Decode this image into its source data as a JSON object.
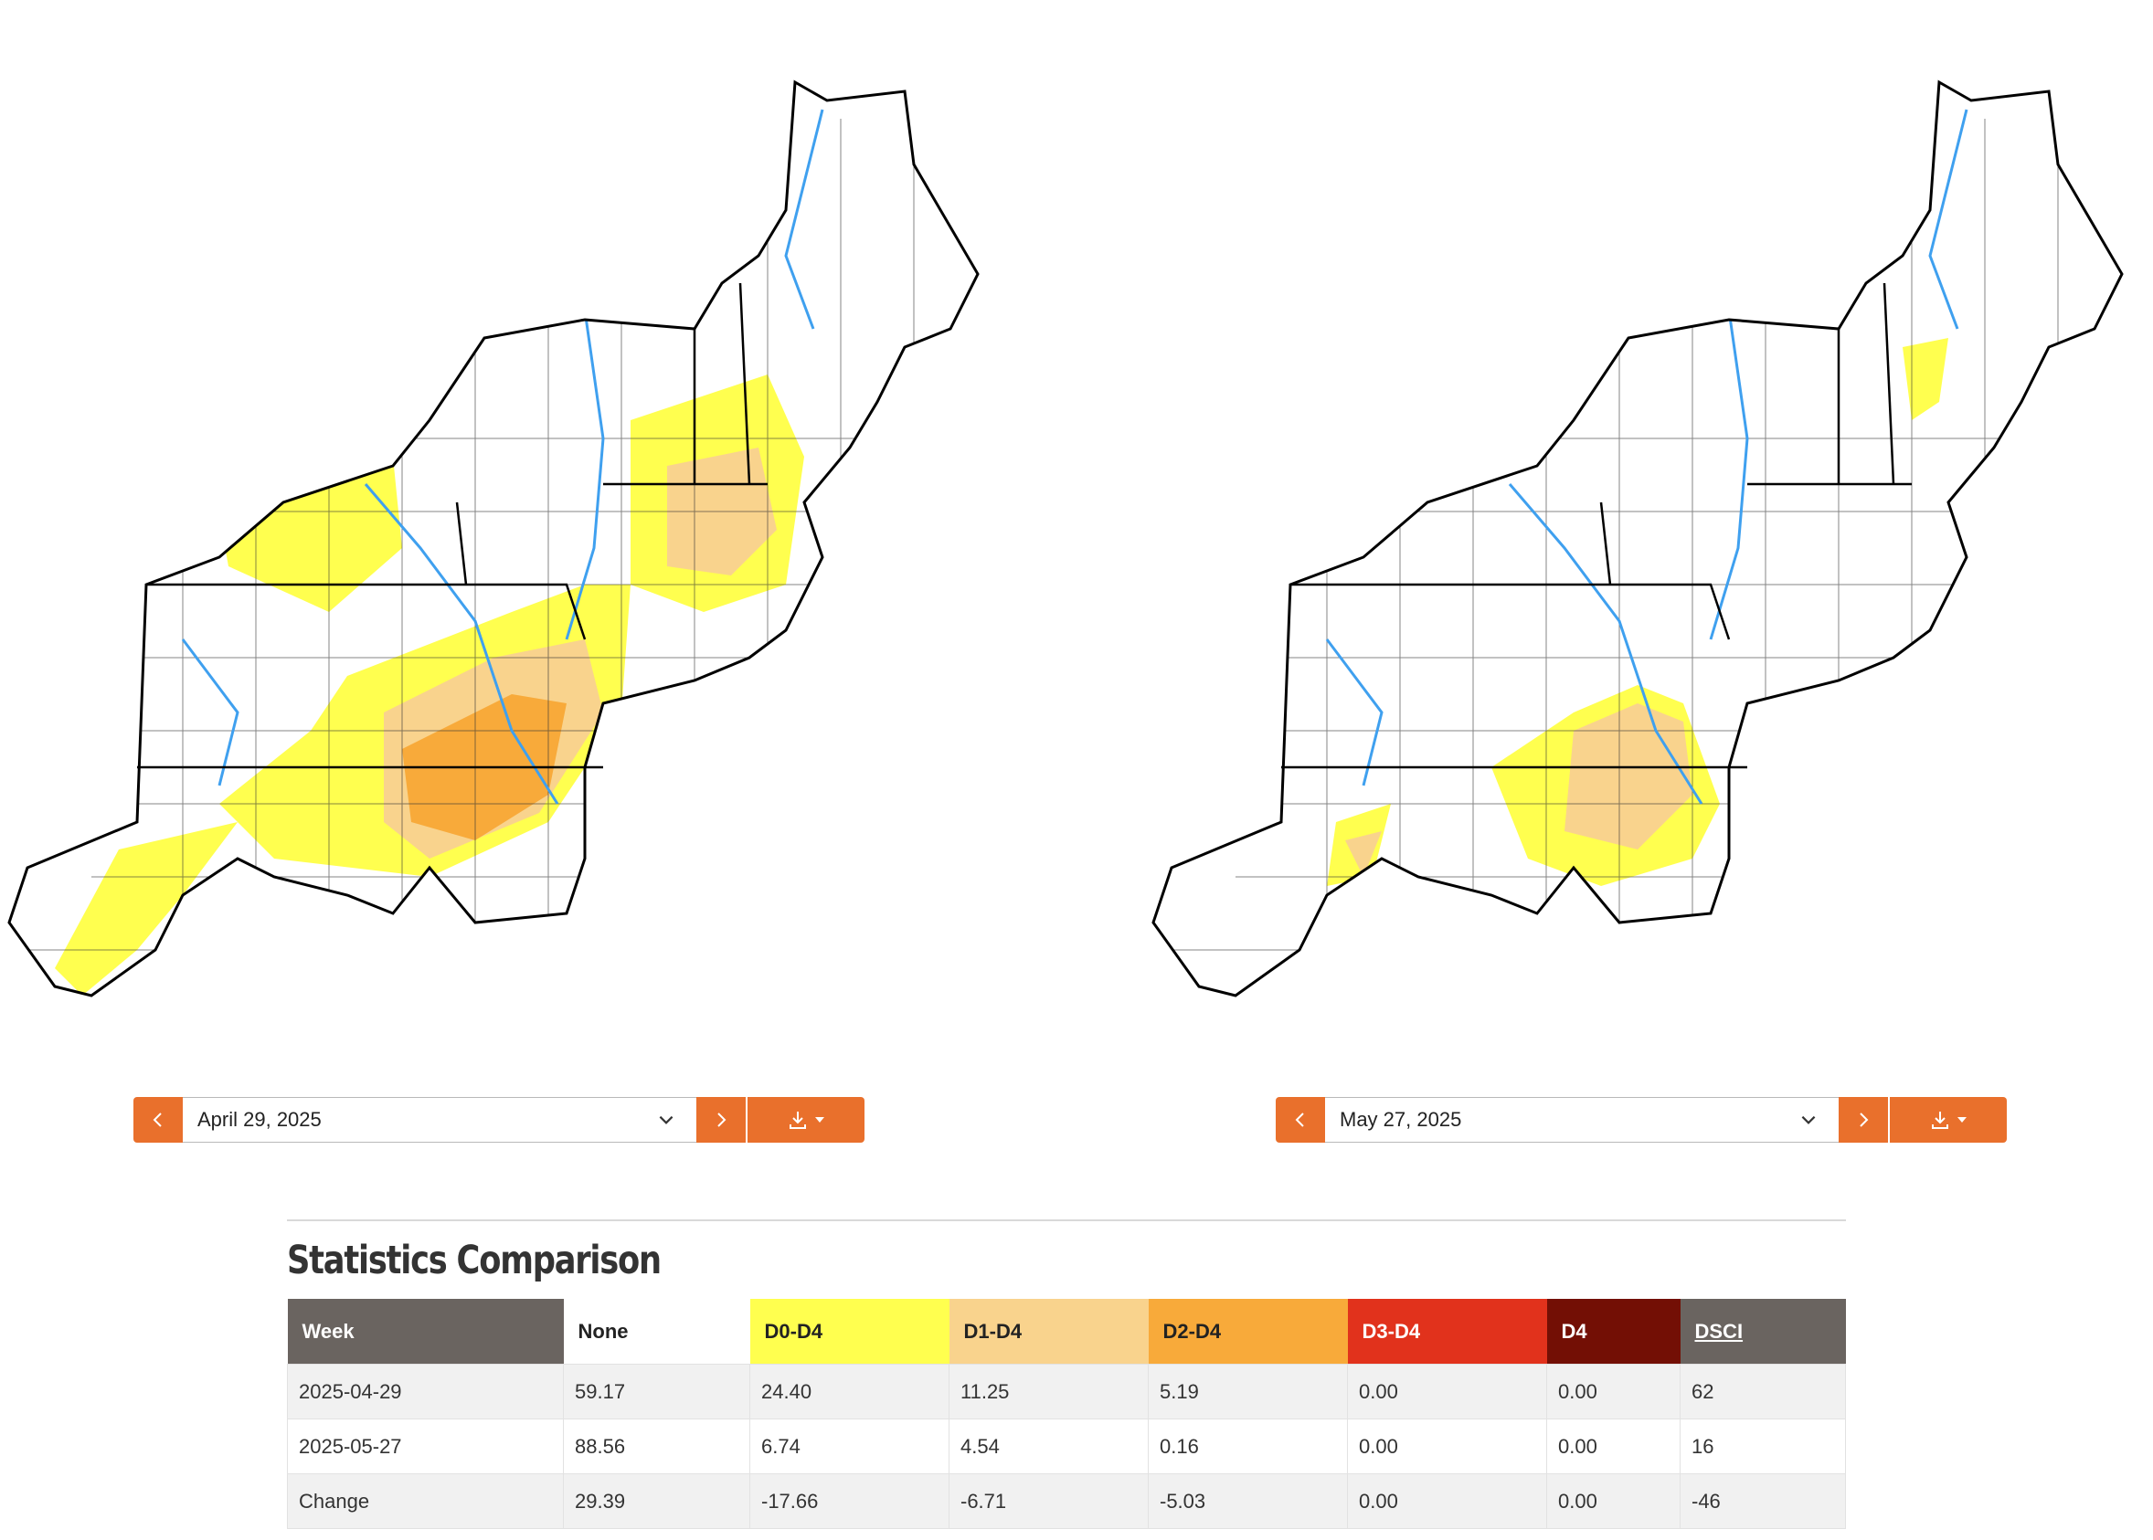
{
  "maps": [
    {
      "date_label": "April 29, 2025"
    },
    {
      "date_label": "May 27, 2025"
    }
  ],
  "icons": {
    "prev": "chevron-left-icon",
    "next": "chevron-right-icon",
    "caret": "chevron-down-icon",
    "download": "download-icon"
  },
  "colors": {
    "accent": "#e9702c",
    "none": "#ffffff",
    "d0": "#ffff4f",
    "d1": "#f9d38d",
    "d2": "#f8aa3a",
    "d3": "#e1321c",
    "d4": "#730f05",
    "header_dark": "#6a6460",
    "rivers": "#3fa0ef"
  },
  "stats": {
    "title": "Statistics Comparison",
    "headers": [
      "Week",
      "None",
      "D0-D4",
      "D1-D4",
      "D2-D4",
      "D3-D4",
      "D4",
      "DSCI"
    ],
    "rows": [
      [
        "2025-04-29",
        "59.17",
        "24.40",
        "11.25",
        "5.19",
        "0.00",
        "0.00",
        "62"
      ],
      [
        "2025-05-27",
        "88.56",
        "6.74",
        "4.54",
        "0.16",
        "0.00",
        "0.00",
        "16"
      ],
      [
        "Change",
        "29.39",
        "-17.66",
        "-6.71",
        "-5.03",
        "0.00",
        "0.00",
        "-46"
      ]
    ]
  }
}
